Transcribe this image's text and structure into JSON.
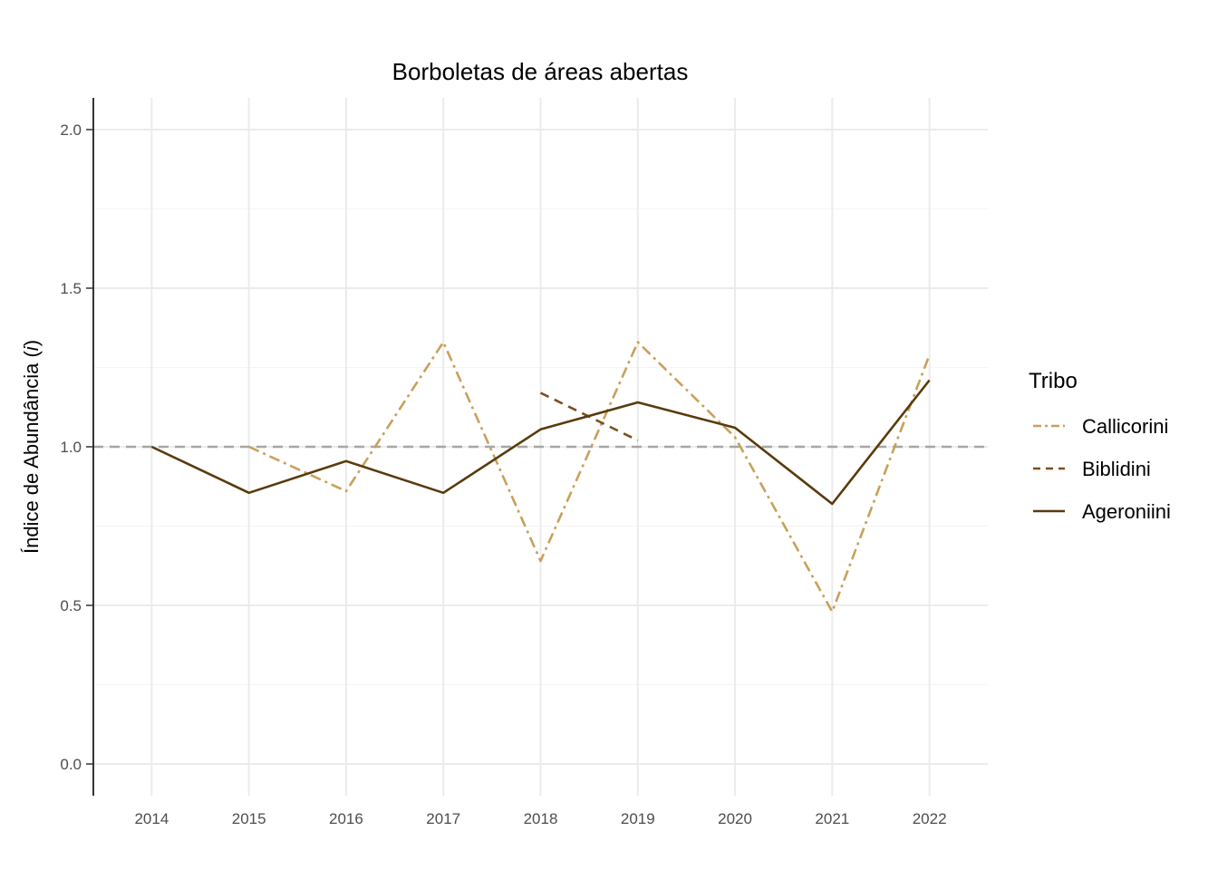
{
  "chart_data": {
    "type": "line",
    "title": "Borboletas de áreas abertas",
    "xlabel": "",
    "ylabel_main": "Índice de Abundância (",
    "ylabel_italic": "i",
    "ylabel_close": ")",
    "x": [
      2014,
      2015,
      2016,
      2017,
      2018,
      2019,
      2020,
      2021,
      2022
    ],
    "x_tick_labels": [
      "2014",
      "2015",
      "2016",
      "2017",
      "2018",
      "2019",
      "2020",
      "2021",
      "2022"
    ],
    "ylim": [
      -0.1,
      2.1
    ],
    "y_ticks": [
      0.0,
      0.5,
      1.0,
      1.5,
      2.0
    ],
    "y_tick_labels": [
      "0.0",
      "0.5",
      "1.0",
      "1.5",
      "2.0"
    ],
    "grid": true,
    "reference_line": {
      "y": 1.0,
      "color": "#a6a6a6",
      "style": "dashed"
    },
    "legend": {
      "title": "Tribo",
      "placement": "right"
    },
    "series": [
      {
        "name": "Callicorini",
        "color": "#c9a05a",
        "style": "dotdash",
        "points": [
          [
            2015,
            1.0
          ],
          [
            2016,
            0.86
          ],
          [
            2017,
            1.33
          ],
          [
            2018,
            0.64
          ],
          [
            2019,
            1.33
          ],
          [
            2020,
            1.03
          ],
          [
            2021,
            0.48
          ],
          [
            2022,
            1.29
          ]
        ]
      },
      {
        "name": "Biblidini",
        "color": "#7b4f1e",
        "style": "dashed",
        "points": [
          [
            2018,
            1.17
          ],
          [
            2019,
            1.02
          ]
        ]
      },
      {
        "name": "Ageroniini",
        "color": "#5a3a0c",
        "style": "solid",
        "points": [
          [
            2014,
            1.0
          ],
          [
            2015,
            0.855
          ],
          [
            2016,
            0.955
          ],
          [
            2017,
            0.855
          ],
          [
            2018,
            1.055
          ],
          [
            2019,
            1.14
          ],
          [
            2020,
            1.06
          ],
          [
            2021,
            0.82
          ],
          [
            2022,
            1.21
          ]
        ]
      }
    ]
  }
}
